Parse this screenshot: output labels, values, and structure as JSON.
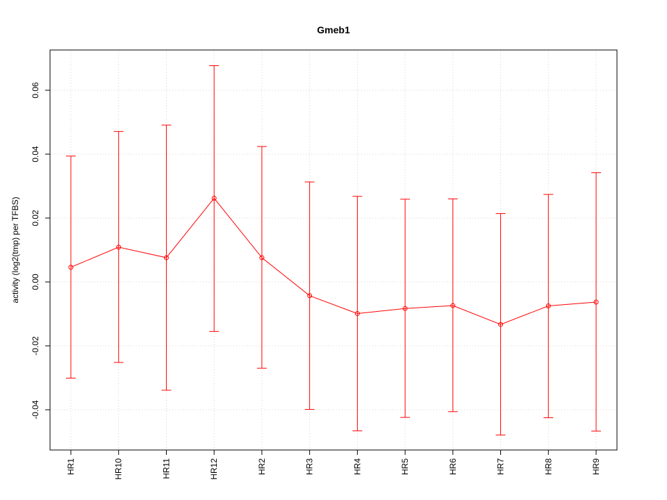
{
  "chart_data": {
    "type": "line",
    "title": "Gmeb1",
    "xlabel": "",
    "ylabel": "activity (log2(tmp) per TFBS)",
    "categories": [
      "HR1",
      "HR10",
      "HR11",
      "HR12",
      "HR2",
      "HR3",
      "HR4",
      "HR5",
      "HR6",
      "HR7",
      "HR8",
      "HR9"
    ],
    "series": [
      {
        "values": [
          0.0046,
          0.0109,
          0.0076,
          0.0262,
          0.0076,
          -0.0043,
          -0.0099,
          -0.0083,
          -0.0074,
          -0.0133,
          -0.0075,
          -0.0063
        ],
        "error_upper": [
          0.0394,
          0.0471,
          0.0491,
          0.0677,
          0.0424,
          0.0313,
          0.0268,
          0.0259,
          0.026,
          0.0214,
          0.0274,
          0.0342
        ],
        "error_lower": [
          -0.0301,
          -0.0252,
          -0.0339,
          -0.0155,
          -0.027,
          -0.0399,
          -0.0466,
          -0.0424,
          -0.0406,
          -0.0479,
          -0.0425,
          -0.0467
        ],
        "color": "#ff0000"
      }
    ],
    "yticks": [
      "-0.04",
      "-0.02",
      "0.00",
      "0.02",
      "0.04",
      "0.06"
    ],
    "ytick_values": [
      -0.04,
      -0.02,
      0.0,
      0.02,
      0.04,
      0.06
    ],
    "ylim": [
      -0.0526,
      0.0726
    ],
    "grid": true,
    "grid_style": "dotted",
    "grid_color": "#d3d3d3",
    "axis_color": "#000000"
  }
}
